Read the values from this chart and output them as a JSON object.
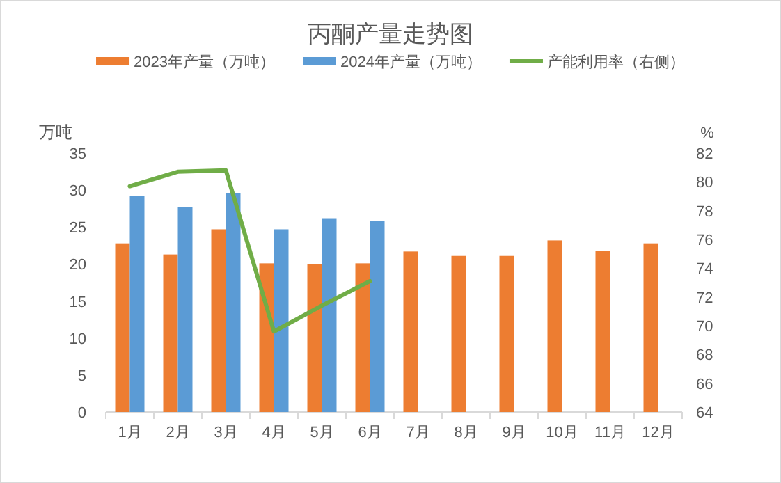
{
  "chart_data": {
    "type": "bar",
    "title": "丙酮产量走势图",
    "ylabel": "万吨",
    "y2label": "%",
    "categories": [
      "1月",
      "2月",
      "3月",
      "4月",
      "5月",
      "6月",
      "7月",
      "8月",
      "9月",
      "10月",
      "11月",
      "12月"
    ],
    "series": [
      {
        "name": "2023年产量（万吨）",
        "color": "#ed7d31",
        "values": [
          22.8,
          21.3,
          24.7,
          20.1,
          20.0,
          20.1,
          21.7,
          21.1,
          21.1,
          23.2,
          21.8,
          22.8
        ]
      },
      {
        "name": "2024年产量（万吨）",
        "color": "#5b9bd5",
        "values": [
          29.2,
          27.7,
          29.6,
          24.7,
          26.2,
          25.8,
          null,
          null,
          null,
          null,
          null,
          null
        ]
      },
      {
        "name": "产能利用率（右侧）",
        "type": "line",
        "axis": "y2",
        "color": "#70ad47",
        "values": [
          79.7,
          80.7,
          80.8,
          69.6,
          71.4,
          73.1,
          null,
          null,
          null,
          null,
          null,
          null
        ]
      }
    ],
    "ylim": [
      0,
      35
    ],
    "yticks": [
      0,
      5,
      10,
      15,
      20,
      25,
      30,
      35
    ],
    "y2lim": [
      64,
      82
    ],
    "y2ticks": [
      64,
      66,
      68,
      70,
      72,
      74,
      76,
      78,
      80,
      82
    ],
    "legend": "top"
  }
}
